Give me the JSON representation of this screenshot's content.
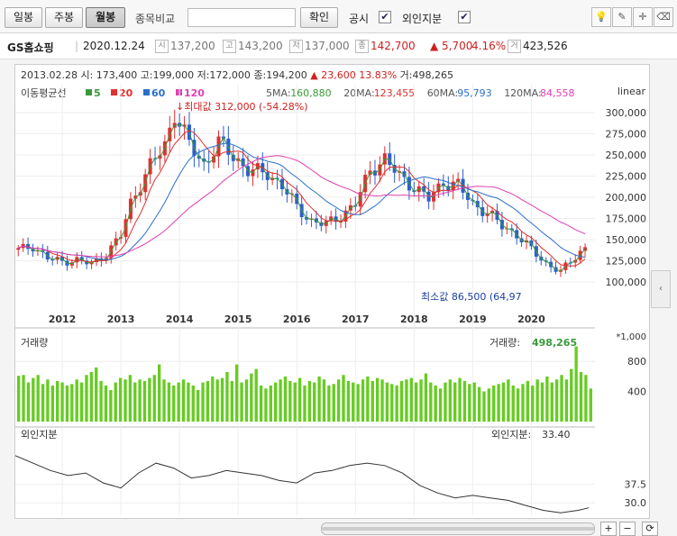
{
  "toolbar": {
    "tabs": [
      "일봉",
      "주봉",
      "월봉"
    ],
    "compare_label": "종목비교",
    "compare_placeholder": "",
    "confirm_label": "확인",
    "disclosure_label": "공시",
    "foreign_label": "외인지분",
    "disclosure_checked": "✔",
    "foreign_checked": "✔"
  },
  "stock": {
    "name": "GS홈쇼핑",
    "date": "2020.12.24",
    "open_tag": "시",
    "open": "137,200",
    "high_tag": "고",
    "high": "143,200",
    "low_tag": "저",
    "low": "137,000",
    "close_tag": "종",
    "close": "142,700",
    "change": "▲ 5,700",
    "change_pct": "4.16%",
    "volume_tag": "거",
    "volume": "423,526"
  },
  "colors": {
    "up": "#e03030",
    "down": "#2b5fcc",
    "ma5": "#3a9a3a",
    "ma20": "#e03030",
    "ma60": "#2b6fcc",
    "ma120": "#e040b0",
    "volume_bar": "#66cc22"
  },
  "chart_data": [
    {
      "type": "candlestick",
      "title": "",
      "snapshot": {
        "date": "2013.02.28",
        "open_label": "시:",
        "open": "173,400",
        "high_label": "고:",
        "high": "199,000",
        "low_label": "저:",
        "low": "172,000",
        "close_label": "종:",
        "close": "194,200",
        "arrow": "▲",
        "change": "23,600",
        "change_pct": "13.83%",
        "volume_label": "거:",
        "volume": "498,265"
      },
      "legend_label": "이동평균선",
      "legend": [
        {
          "name": "5",
          "color": "#3a9a3a"
        },
        {
          "name": "20",
          "color": "#e03030"
        },
        {
          "name": "60",
          "color": "#2b6fcc"
        },
        {
          "name": "120",
          "color": "#e040b0"
        }
      ],
      "ma_values": [
        {
          "label": "5MA:",
          "value": "160,880",
          "color": "#3a9a3a"
        },
        {
          "label": "20MA:",
          "value": "123,455",
          "color": "#e03030"
        },
        {
          "label": "60MA:",
          "value": "95,793",
          "color": "#2b6fcc"
        },
        {
          "label": "120MA:",
          "value": "84,558",
          "color": "#e040b0"
        }
      ],
      "scale_label": "linear",
      "yticks": [
        "300,000",
        "275,000",
        "250,000",
        "225,000",
        "200,000",
        "175,000",
        "150,000",
        "125,000",
        "100,000"
      ],
      "ytick_values": [
        300000,
        275000,
        250000,
        225000,
        200000,
        175000,
        150000,
        125000,
        100000
      ],
      "ylim": [
        67000,
        333000
      ],
      "xticks": [
        "2012",
        "2013",
        "2014",
        "2015",
        "2016",
        "2017",
        "2018",
        "2019",
        "2020"
      ],
      "xtick_values": [
        2012.0,
        2013.0,
        2014.0,
        2015.0,
        2016.0,
        2017.0,
        2018.0,
        2019.0,
        2020.0
      ],
      "xlim": [
        2011.2,
        2021.1
      ],
      "max_annotation": "최대값 312,000 (-54.28%)",
      "min_annotation": "최소값 86,500 (64,97",
      "close_series": [
        [
          2011.25,
          138000
        ],
        [
          2011.5,
          142000
        ],
        [
          2011.75,
          128000
        ],
        [
          2012.0,
          124000
        ],
        [
          2012.25,
          126000
        ],
        [
          2012.5,
          121000
        ],
        [
          2012.75,
          133000
        ],
        [
          2013.0,
          155000
        ],
        [
          2013.17,
          194200
        ],
        [
          2013.5,
          237000
        ],
        [
          2013.75,
          262000
        ],
        [
          2013.92,
          300000
        ],
        [
          2014.17,
          262000
        ],
        [
          2014.42,
          238000
        ],
        [
          2014.67,
          265000
        ],
        [
          2014.92,
          248000
        ],
        [
          2015.17,
          232000
        ],
        [
          2015.5,
          228000
        ],
        [
          2015.75,
          214000
        ],
        [
          2016.0,
          188000
        ],
        [
          2016.25,
          172000
        ],
        [
          2016.5,
          168000
        ],
        [
          2016.75,
          178000
        ],
        [
          2017.0,
          192000
        ],
        [
          2017.25,
          232000
        ],
        [
          2017.5,
          245000
        ],
        [
          2017.75,
          225000
        ],
        [
          2018.0,
          212000
        ],
        [
          2018.25,
          198000
        ],
        [
          2018.5,
          218000
        ],
        [
          2018.75,
          214000
        ],
        [
          2019.0,
          192000
        ],
        [
          2019.25,
          182000
        ],
        [
          2019.5,
          166000
        ],
        [
          2019.75,
          156000
        ],
        [
          2020.0,
          138000
        ],
        [
          2020.25,
          122000
        ],
        [
          2020.5,
          112000
        ],
        [
          2020.67,
          124000
        ],
        [
          2020.83,
          136000
        ],
        [
          2020.98,
          142700
        ]
      ]
    },
    {
      "type": "bar",
      "title": "거래량",
      "value_label": "거래량:",
      "value": "498,265",
      "unit": "*1,000",
      "yticks": [
        "800",
        "400"
      ],
      "ytick_values": [
        800,
        400
      ],
      "ylim": [
        0,
        1150
      ],
      "values": [
        610,
        620,
        520,
        580,
        620,
        500,
        560,
        480,
        540,
        520,
        480,
        500,
        560,
        520,
        620,
        660,
        720,
        540,
        480,
        420,
        520,
        580,
        560,
        620,
        520,
        560,
        540,
        580,
        620,
        760,
        560,
        520,
        480,
        520,
        560,
        520,
        480,
        420,
        520,
        540,
        600,
        560,
        580,
        660,
        540,
        760,
        520,
        560,
        640,
        700,
        480,
        440,
        480,
        520,
        560,
        600,
        540,
        520,
        580,
        480,
        540,
        520,
        600,
        560,
        480,
        500,
        560,
        620,
        540,
        520,
        500,
        560,
        600,
        540,
        580,
        560,
        520,
        500,
        480,
        540,
        560,
        580,
        520,
        560,
        640,
        520,
        480,
        440,
        520,
        560,
        520,
        580,
        540,
        500,
        520,
        460,
        400,
        440,
        480,
        500,
        520,
        560,
        480,
        440,
        500,
        540,
        480,
        560,
        520,
        600,
        520,
        560,
        620,
        560,
        700,
        1000,
        660,
        620,
        440
      ]
    },
    {
      "type": "line",
      "title": "외인지분",
      "value_label": "외인지분:",
      "value": "33.40",
      "yticks": [
        "37.5",
        "30.0"
      ],
      "ytick_values": [
        37.5,
        30.0
      ],
      "ylim": [
        25,
        54
      ],
      "x": [
        2011.2,
        2011.5,
        2011.8,
        2012.1,
        2012.4,
        2012.7,
        2013.0,
        2013.3,
        2013.6,
        2013.9,
        2014.2,
        2014.5,
        2014.8,
        2015.1,
        2015.4,
        2015.7,
        2016.0,
        2016.3,
        2016.6,
        2016.9,
        2017.2,
        2017.5,
        2017.8,
        2018.1,
        2018.4,
        2018.7,
        2019.0,
        2019.3,
        2019.6,
        2019.9,
        2020.2,
        2020.5,
        2020.8,
        2020.98
      ],
      "values": [
        49,
        46,
        43,
        41,
        42,
        38,
        36,
        42,
        46,
        44,
        40,
        41,
        43,
        42,
        41,
        39,
        38,
        42,
        43,
        45,
        46,
        45,
        42,
        37,
        34,
        32,
        33,
        32,
        31,
        29,
        27,
        26,
        27,
        28
      ]
    }
  ],
  "pager": {
    "plus": "+",
    "minus": "−",
    "refresh": "⟳"
  }
}
